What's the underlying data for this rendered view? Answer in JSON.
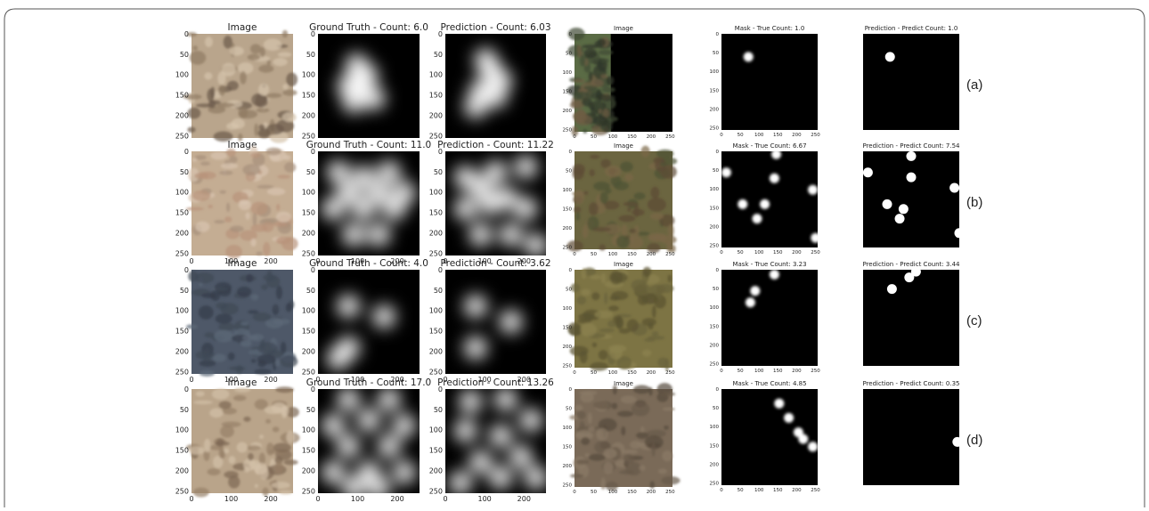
{
  "left_group": {
    "y_ticks": [
      "0",
      "50",
      "100",
      "150",
      "200",
      "250"
    ],
    "x_ticks": [
      "0",
      "100",
      "200"
    ]
  },
  "right_group": {
    "y_ticks": [
      "0",
      "50",
      "100",
      "150",
      "200",
      "250"
    ],
    "x_ticks": [
      "0",
      "50",
      "100",
      "150",
      "200",
      "250"
    ]
  },
  "rows": [
    {
      "label": "(a)",
      "panels": [
        {
          "title": "Image"
        },
        {
          "title": "Ground Truth - Count: 6.0"
        },
        {
          "title": "Prediction - Count: 6.03"
        },
        {
          "title": "Image"
        },
        {
          "title": "Mask - True Count: 1.0"
        },
        {
          "title": "Prediction - Predict Count: 1.0"
        }
      ]
    },
    {
      "label": "(b)",
      "panels": [
        {
          "title": "Image"
        },
        {
          "title": "Ground Truth - Count: 11.0"
        },
        {
          "title": "Prediction - Count: 11.22"
        },
        {
          "title": "Image"
        },
        {
          "title": "Mask - True Count: 6.67"
        },
        {
          "title": "Prediction - Predict Count: 7.54"
        }
      ]
    },
    {
      "label": "(c)",
      "panels": [
        {
          "title": "Image"
        },
        {
          "title": "Ground Truth - Count: 4.0"
        },
        {
          "title": "Prediction - Count: 3.62"
        },
        {
          "title": "Image"
        },
        {
          "title": "Mask - True Count: 3.23"
        },
        {
          "title": "Prediction - Predict Count: 3.44"
        }
      ]
    },
    {
      "label": "(d)",
      "panels": [
        {
          "title": "Image"
        },
        {
          "title": "Ground Truth - Count: 17.0"
        },
        {
          "title": "Prediction - Count: 13.26"
        },
        {
          "title": "Image"
        },
        {
          "title": "Mask - True Count: 4.85"
        },
        {
          "title": "Prediction - Predict Count: 0.35"
        }
      ]
    }
  ]
}
